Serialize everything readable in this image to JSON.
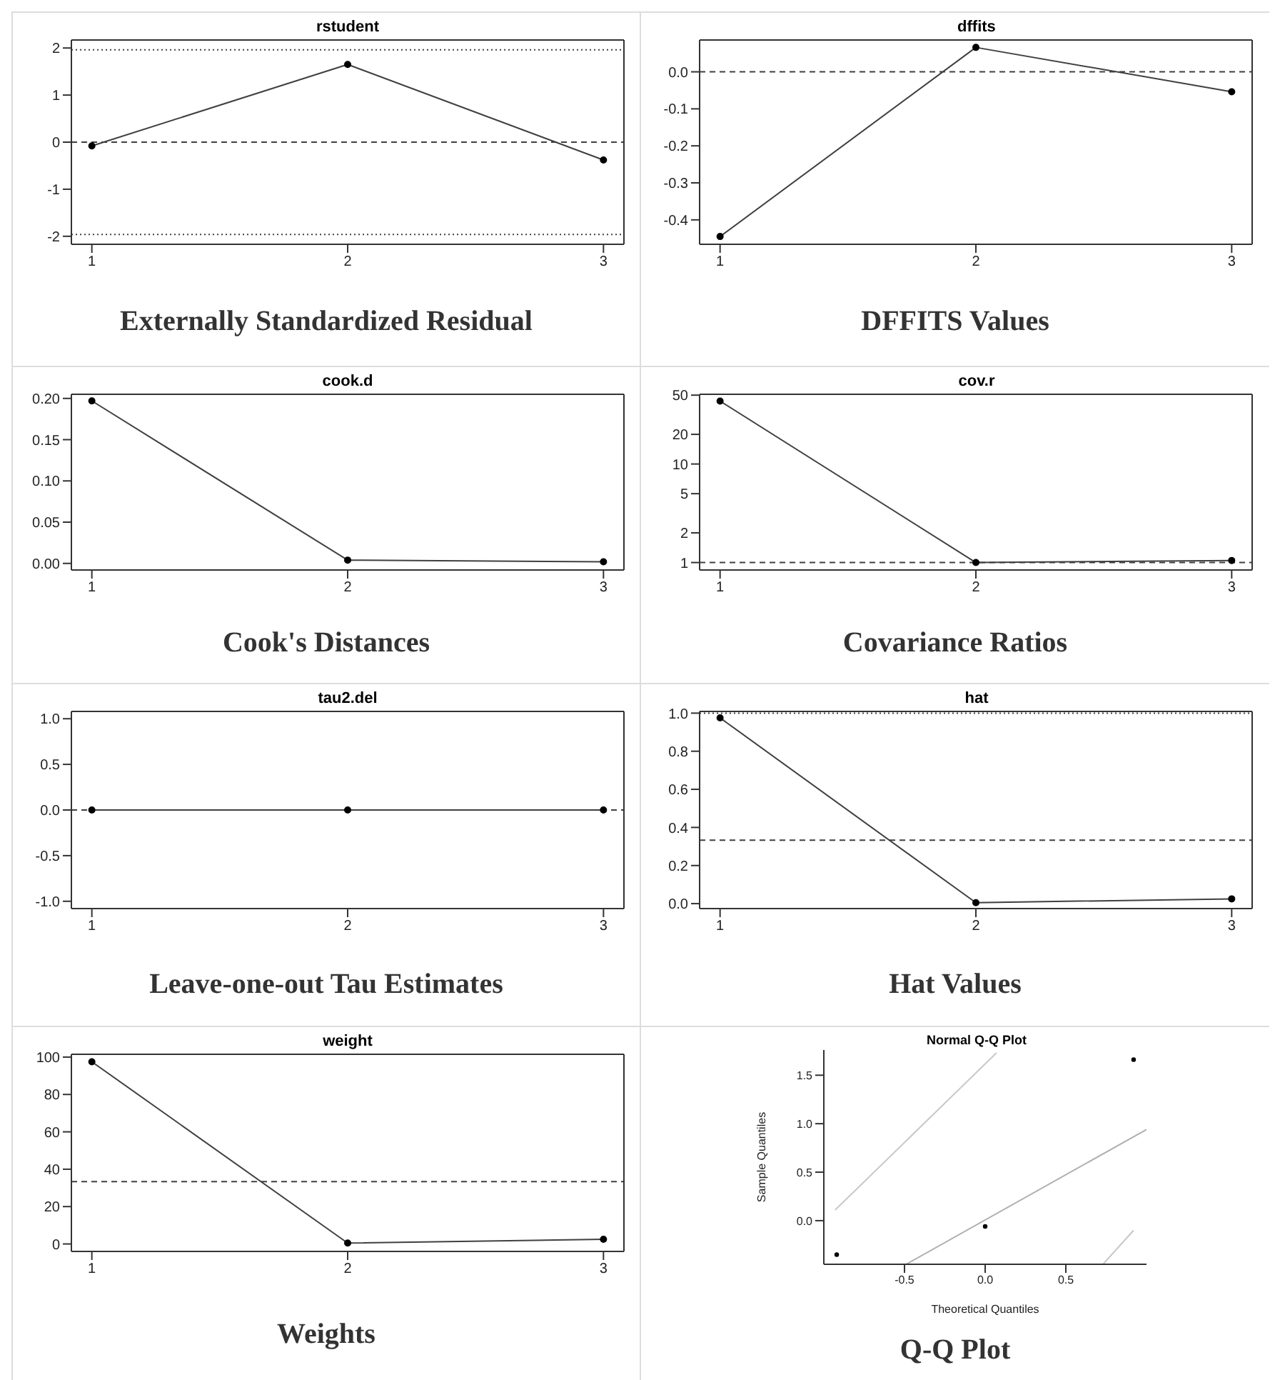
{
  "chart_data": [
    {
      "type": "line",
      "title": "rstudent",
      "annotations": [
        "Externally Standardized Residual"
      ],
      "x": [
        1,
        2,
        3
      ],
      "xlim": [
        0.92,
        3.08
      ],
      "xticks": [
        1,
        2,
        3
      ],
      "ylim": [
        -2.17,
        2.17
      ],
      "yticks": [
        -2,
        -1,
        0,
        1,
        2
      ],
      "marker": "circle",
      "line_style": "solid",
      "grid": false,
      "series": [
        {
          "color": "#404040",
          "values": [
            -0.08,
            1.65,
            -0.38
          ]
        }
      ],
      "ref_lines": [
        {
          "axis": "y",
          "value": 0,
          "line_style": "dashed",
          "color": "#404040"
        },
        {
          "axis": "y",
          "value": 1.96,
          "line_style": "dotted",
          "color": "#404040"
        },
        {
          "axis": "y",
          "value": -1.96,
          "line_style": "dotted",
          "color": "#404040"
        }
      ]
    },
    {
      "type": "line",
      "title": "dffits",
      "annotations": [
        "DFFITS Values"
      ],
      "x": [
        1,
        2,
        3
      ],
      "xlim": [
        0.92,
        3.08
      ],
      "xticks": [
        1,
        2,
        3
      ],
      "ylim": [
        -0.466,
        0.086
      ],
      "yticks": [
        {
          "value": -0.4,
          "label": "-0.4"
        },
        {
          "value": -0.3,
          "label": "-0.3"
        },
        {
          "value": -0.2,
          "label": "-0.2"
        },
        {
          "value": -0.1,
          "label": "-0.1"
        },
        {
          "value": 0,
          "label": "0.0"
        }
      ],
      "marker": "circle",
      "line_style": "solid",
      "grid": false,
      "series": [
        {
          "color": "#404040",
          "values": [
            -0.445,
            0.066,
            -0.054
          ]
        }
      ],
      "ref_lines": [
        {
          "axis": "y",
          "value": 0,
          "line_style": "dashed",
          "color": "#404040"
        }
      ]
    },
    {
      "type": "line",
      "title": "cook.d",
      "annotations": [
        "Cook's Distances"
      ],
      "x": [
        1,
        2,
        3
      ],
      "xlim": [
        0.92,
        3.08
      ],
      "xticks": [
        1,
        2,
        3
      ],
      "ylim": [
        -0.008,
        0.205
      ],
      "yticks": [
        {
          "value": 0,
          "label": "0.00"
        },
        0.05,
        {
          "value": 0.1,
          "label": "0.10"
        },
        0.15,
        {
          "value": 0.2,
          "label": "0.20"
        }
      ],
      "marker": "circle",
      "line_style": "solid",
      "grid": false,
      "series": [
        {
          "color": "#404040",
          "values": [
            0.197,
            0.004,
            0.002
          ]
        }
      ]
    },
    {
      "type": "line",
      "title": "cov.r",
      "annotations": [
        "Covariance Ratios"
      ],
      "x": [
        1,
        2,
        3
      ],
      "xlim": [
        0.92,
        3.08
      ],
      "xticks": [
        1,
        2,
        3
      ],
      "log": "y",
      "ylim": [
        0.84,
        51
      ],
      "yticks": [
        1,
        2,
        5,
        10,
        20,
        50
      ],
      "marker": "circle",
      "line_style": "solid",
      "grid": false,
      "series": [
        {
          "color": "#404040",
          "values": [
            43.5,
            1.0,
            1.05
          ]
        }
      ],
      "ref_lines": [
        {
          "axis": "y",
          "value": 1,
          "line_style": "dashed",
          "color": "#404040"
        }
      ]
    },
    {
      "type": "line",
      "title": "tau2.del",
      "annotations": [
        "Leave-one-out Tau Estimates"
      ],
      "x": [
        1,
        2,
        3
      ],
      "xlim": [
        0.92,
        3.08
      ],
      "xticks": [
        1,
        2,
        3
      ],
      "ylim": [
        -1.08,
        1.08
      ],
      "yticks": [
        {
          "value": -1,
          "label": "-1.0"
        },
        -0.5,
        {
          "value": 0,
          "label": "0.0"
        },
        0.5,
        {
          "value": 1,
          "label": "1.0"
        }
      ],
      "marker": "circle",
      "line_style": "solid",
      "grid": false,
      "series": [
        {
          "color": "#404040",
          "values": [
            0,
            0,
            0
          ]
        }
      ],
      "ref_lines": [
        {
          "axis": "y",
          "value": 0,
          "line_style": "dashed",
          "color": "#404040"
        }
      ]
    },
    {
      "type": "line",
      "title": "hat",
      "annotations": [
        "Hat Values"
      ],
      "x": [
        1,
        2,
        3
      ],
      "xlim": [
        0.92,
        3.08
      ],
      "xticks": [
        1,
        2,
        3
      ],
      "ylim": [
        -0.026,
        1.009
      ],
      "yticks": [
        {
          "value": 0,
          "label": "0.0"
        },
        0.2,
        0.4,
        0.6,
        0.8,
        {
          "value": 1,
          "label": "1.0"
        }
      ],
      "marker": "circle",
      "line_style": "solid",
      "grid": false,
      "series": [
        {
          "color": "#404040",
          "values": [
            0.975,
            0.005,
            0.025
          ]
        }
      ],
      "ref_lines": [
        {
          "axis": "y",
          "value": 1,
          "line_style": "dotted",
          "color": "#404040"
        },
        {
          "axis": "y",
          "value": 0.333,
          "line_style": "dashed",
          "color": "#404040"
        }
      ]
    },
    {
      "type": "line",
      "title": "weight",
      "annotations": [
        "Weights"
      ],
      "x": [
        1,
        2,
        3
      ],
      "xlim": [
        0.92,
        3.08
      ],
      "xticks": [
        1,
        2,
        3
      ],
      "ylim": [
        -4,
        101.5
      ],
      "yticks": [
        0,
        20,
        40,
        60,
        80,
        100
      ],
      "marker": "circle",
      "line_style": "solid",
      "grid": false,
      "series": [
        {
          "color": "#404040",
          "values": [
            97.5,
            0.5,
            2.5
          ]
        }
      ],
      "ref_lines": [
        {
          "axis": "y",
          "value": 33.33,
          "line_style": "dashed",
          "color": "#404040"
        }
      ]
    },
    {
      "type": "scatter",
      "title": "Normal Q-Q Plot",
      "xlabel": "Theoretical Quantiles",
      "ylabel": "Sample Quantiles",
      "annotations": [
        "Q-Q Plot"
      ],
      "xlim": [
        -1,
        1
      ],
      "xticks": [
        {
          "value": -0.5,
          "label": "-0.5"
        },
        {
          "value": 0,
          "label": "0.0"
        },
        {
          "value": 0.5,
          "label": "0.5"
        }
      ],
      "ylim": [
        -0.45,
        1.76
      ],
      "yticks": [
        {
          "value": 0,
          "label": "0.0"
        },
        {
          "value": 0.5,
          "label": "0.5"
        },
        {
          "value": 1,
          "label": "1.0"
        },
        {
          "value": 1.5,
          "label": "1.5"
        }
      ],
      "marker": "circle",
      "grid": false,
      "series": [
        {
          "color": "#000000",
          "x": [
            -0.92,
            0,
            0.92
          ],
          "values": [
            -0.35,
            -0.06,
            1.66
          ]
        },
        {
          "type": "line",
          "marker": "none",
          "color": "#c8c8c8",
          "x": [
            -0.93,
            0.07
          ],
          "values": [
            0.11,
            1.73
          ]
        },
        {
          "type": "line",
          "marker": "none",
          "color": "#b0b0b0",
          "x": [
            -0.49,
            1.0
          ],
          "values": [
            -0.45,
            0.94
          ]
        },
        {
          "type": "line",
          "marker": "none",
          "color": "#c8c8c8",
          "x": [
            0.73,
            0.92
          ],
          "values": [
            -0.45,
            -0.1
          ]
        }
      ]
    }
  ]
}
